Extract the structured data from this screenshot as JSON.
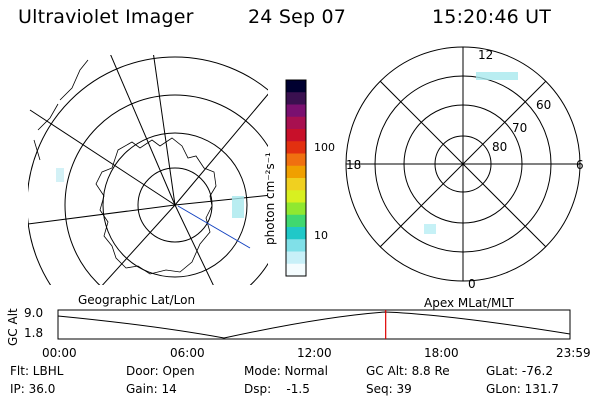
{
  "header": {
    "instrument": "Ultraviolet Imager",
    "date": "24 Sep 07",
    "time": "15:20:46 UT"
  },
  "colorbar": {
    "unit_label": "photon cm⁻²s⁻¹",
    "ticks": [
      "100",
      "10"
    ],
    "colors": [
      "#000030",
      "#3a1050",
      "#7a1070",
      "#a81050",
      "#c8102a",
      "#e23010",
      "#f07010",
      "#f0a000",
      "#f0d020",
      "#d8f020",
      "#90e830",
      "#40d870",
      "#20c8c8",
      "#80e0e8",
      "#c8f0f8",
      "#f4fcfe"
    ]
  },
  "left_map": {
    "coordinate_label": "Geographic Lat/Lon"
  },
  "right_map": {
    "coordinate_label": "Apex MLat/MLT",
    "mlt_labels": {
      "top": "12",
      "left": "18",
      "right": "6",
      "bottom": "0"
    },
    "lat_labels": [
      "60",
      "70",
      "80"
    ]
  },
  "altitude_plot": {
    "ylabel": "GC Alt",
    "ytick_top": "9.0",
    "ytick_bottom": "1.8",
    "xticks": [
      "00:00",
      "06:00",
      "12:00",
      "18:00",
      "23:59"
    ],
    "current_time_fraction": 0.64,
    "marker_color": "#e00000"
  },
  "info": {
    "row1": {
      "flt": "Flt: LBHL",
      "door": "Door: Open",
      "mode": "Mode: Normal",
      "gcalt": "GC Alt: 8.8 Re",
      "glat": "GLat: -76.2"
    },
    "row2": {
      "ip": "IP: 36.0",
      "gain": "Gain: 14",
      "dsp": "Dsp:    -1.5",
      "seq": "Seq: 39",
      "glon": "GLon: 131.7"
    }
  }
}
